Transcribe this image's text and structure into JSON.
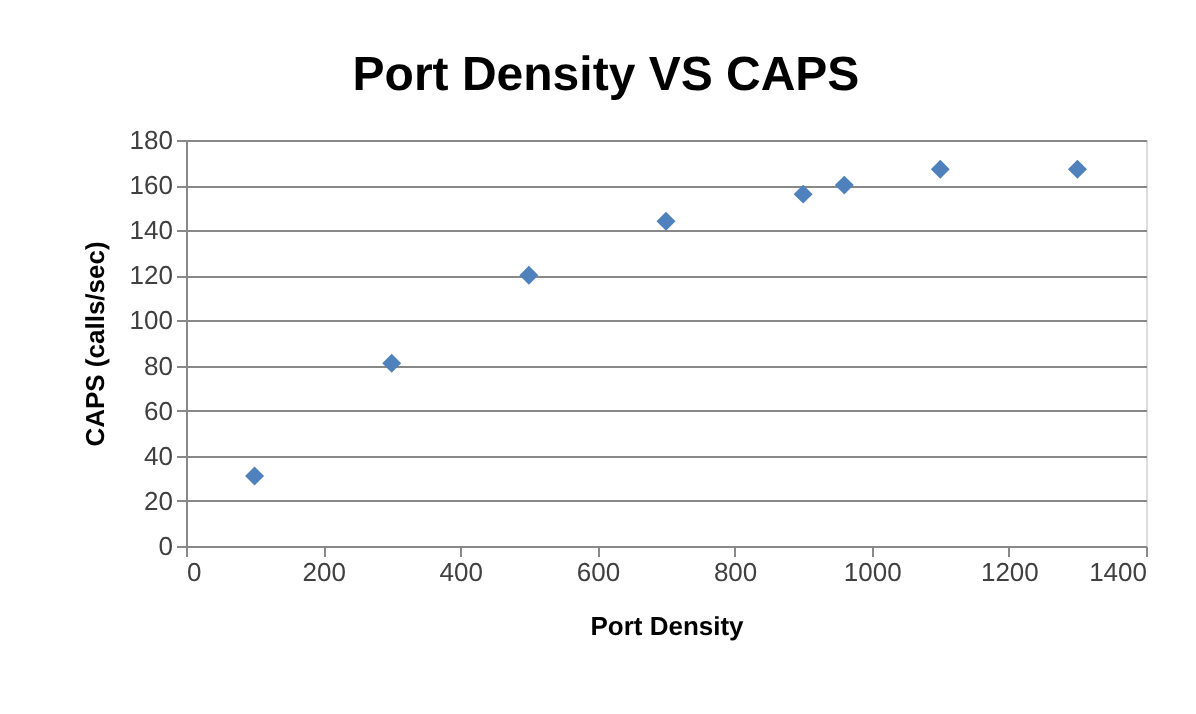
{
  "chart_data": {
    "type": "scatter",
    "title": "Port Density VS CAPS",
    "xlabel": "Port Density",
    "ylabel": "CAPS (calls/sec)",
    "x": [
      100,
      300,
      500,
      700,
      900,
      960,
      1100,
      1300
    ],
    "series": [
      {
        "color": "#4f81bd",
        "values": [
          31,
          81,
          120,
          144,
          156,
          160,
          167,
          167
        ]
      }
    ],
    "xlim": [
      0,
      1400
    ],
    "xticks": [
      0,
      200,
      400,
      600,
      800,
      1000,
      1200,
      1400
    ],
    "ylim": [
      0,
      180
    ],
    "yticks": [
      0,
      20,
      40,
      60,
      80,
      100,
      120,
      140,
      160,
      180
    ],
    "grid": "y",
    "marker": "diamond"
  }
}
